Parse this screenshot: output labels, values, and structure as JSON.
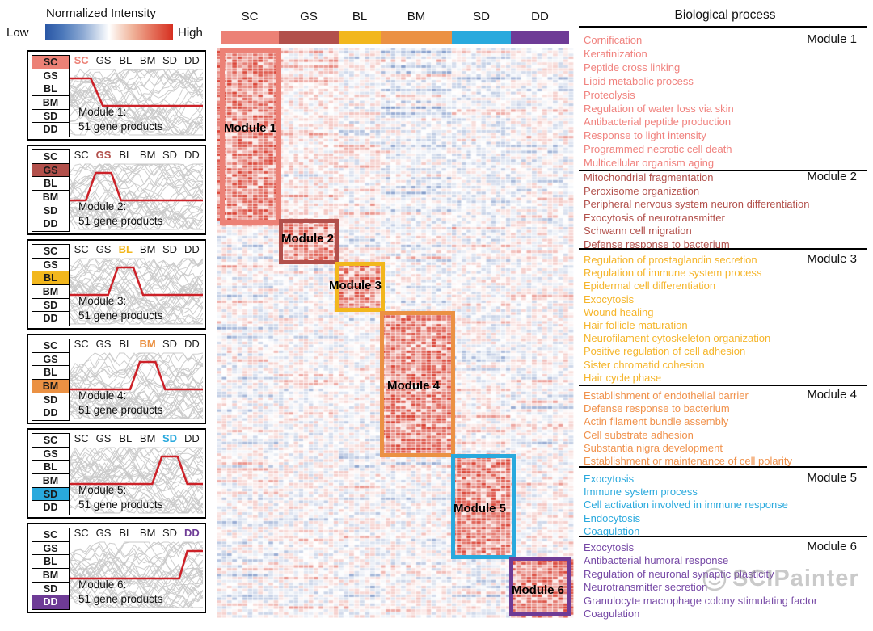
{
  "legend": {
    "title": "Normalized Intensity",
    "low_label": "Low",
    "high_label": "High"
  },
  "groups": [
    "SC",
    "GS",
    "BL",
    "BM",
    "SD",
    "DD"
  ],
  "group_colors": {
    "SC": "#EC8176",
    "GS": "#B2504B",
    "BL": "#F2B71D",
    "BM": "#EB9143",
    "SD": "#29A9DD",
    "DD": "#6E3B96"
  },
  "heat_colors": {
    "low": "#2E58A6",
    "mid": "#FFFFFF",
    "high": "#D62F20"
  },
  "right_panel": {
    "title": "Biological process"
  },
  "watermark": {
    "text": "SCIPainter"
  },
  "modules": [
    {
      "id": 1,
      "label": "Module 1",
      "caption": "Module 1:",
      "genes_label": "51 gene products",
      "group": "SC",
      "color": "#EC8176",
      "text_color": "#F0827E",
      "processes": [
        "Cornification",
        "Keratinization",
        "Peptide cross linking",
        "Lipid metabolic process",
        "Proteolysis",
        "Regulation of water loss via skin",
        "Antibacterial peptide production",
        "Response to light intensity",
        "Programmed necrotic cell death",
        "Multicellular organism aging"
      ]
    },
    {
      "id": 2,
      "label": "Module 2",
      "caption": "Module 2:",
      "genes_label": "51 gene products",
      "group": "GS",
      "color": "#B2504B",
      "text_color": "#B2504B",
      "processes": [
        "Mitochondrial fragmentation",
        "Peroxisome organization",
        "Peripheral nervous system neuron differentiation",
        "Exocytosis of neurotransmitter",
        "Schwann cell migration",
        "Defense response to bacterium"
      ]
    },
    {
      "id": 3,
      "label": "Module 3",
      "caption": "Module 3:",
      "genes_label": "51 gene products",
      "group": "BL",
      "color": "#F2B71D",
      "text_color": "#F5B52A",
      "processes": [
        "Regulation of prostaglandin secretion",
        "Regulation of immune system process",
        "Epidermal cell differentiation",
        "Exocytosis",
        "Wound healing",
        "Hair follicle maturation",
        "Neurofilament cytoskeleton organization",
        "Positive regulation of cell adhesion",
        "Sister chromatid cohesion",
        "Hair cycle phase"
      ]
    },
    {
      "id": 4,
      "label": "Module 4",
      "caption": "Module 4:",
      "genes_label": "51 gene products",
      "group": "BM",
      "color": "#EB9143",
      "text_color": "#F0914B",
      "processes": [
        "Establishment of endothelial barrier",
        "Defense response to bacterium",
        "Actin filament bundle assembly",
        "Cell substrate adhesion",
        "Substantia nigra development",
        "Establishment or maintenance of cell polarity"
      ]
    },
    {
      "id": 5,
      "label": "Module 5",
      "caption": "Module 5:",
      "genes_label": "51 gene products",
      "group": "SD",
      "color": "#29A9DD",
      "text_color": "#29A9DD",
      "processes": [
        "Exocytosis",
        "Immune system process",
        "Cell activation involved in immune response",
        "Endocytosis",
        "Coagulation"
      ]
    },
    {
      "id": 6,
      "label": "Module 6",
      "caption": "Module 6:",
      "genes_label": "51 gene products",
      "group": "DD",
      "color": "#6E3B96",
      "text_color": "#7547A5",
      "processes": [
        "Exocytosis",
        "Antibacterial humoral response",
        "Regulation of neuronal synaptic plasticity",
        "Neurotransmitter secretion",
        "Granulocyte macrophage colony stimulating factor",
        "Coagulation"
      ]
    }
  ],
  "chart_data": {
    "type": "heatmap",
    "title": "Normalized Intensity",
    "columns": [
      "SC",
      "GS",
      "BL",
      "BM",
      "SD",
      "DD"
    ],
    "colorbar": {
      "low_label": "Low",
      "high_label": "High",
      "low_color": "#2E58A6",
      "mid_color": "#FFFFFF",
      "high_color": "#D62F20"
    },
    "description": "Gene products clustered into 6 co-expression modules (51 gene products each); rows are genes, columns are 6 sample groups with replicate sub-columns; each module block is enriched (red, high normalized intensity) in exactly one sample group, outlined by a colored box.",
    "modules": [
      {
        "name": "Module 1",
        "enriched_in": "SC",
        "gene_products": 51,
        "mean_profile": [
          1,
          0,
          0,
          0,
          0,
          0
        ],
        "row_span_fraction": [
          0.0,
          0.31
        ]
      },
      {
        "name": "Module 2",
        "enriched_in": "GS",
        "gene_products": 51,
        "mean_profile": [
          0,
          1,
          0,
          0,
          0,
          0
        ],
        "row_span_fraction": [
          0.3,
          0.38
        ]
      },
      {
        "name": "Module 3",
        "enriched_in": "BL",
        "gene_products": 51,
        "mean_profile": [
          0,
          0,
          1,
          0,
          0,
          0
        ],
        "row_span_fraction": [
          0.375,
          0.463
        ]
      },
      {
        "name": "Module 4",
        "enriched_in": "BM",
        "gene_products": 51,
        "mean_profile": [
          0,
          0,
          0,
          1,
          0,
          0
        ],
        "row_span_fraction": [
          0.461,
          0.718
        ]
      },
      {
        "name": "Module 5",
        "enriched_in": "SD",
        "gene_products": 51,
        "mean_profile": [
          0,
          0,
          0,
          0,
          1,
          0
        ],
        "row_span_fraction": [
          0.712,
          0.897
        ]
      },
      {
        "name": "Module 6",
        "enriched_in": "DD",
        "gene_products": 51,
        "mean_profile": [
          0,
          0,
          0,
          0,
          0,
          1
        ],
        "row_span_fraction": [
          0.892,
          0.997
        ]
      }
    ],
    "legend_position": "top-left",
    "grid": false
  }
}
